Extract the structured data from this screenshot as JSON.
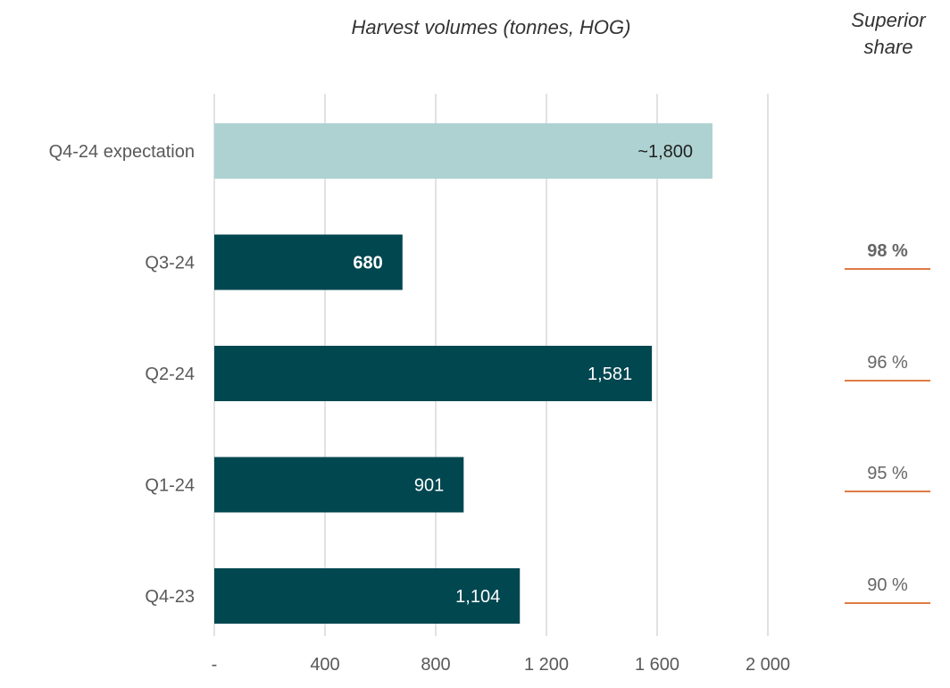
{
  "chart_data": {
    "type": "bar",
    "orientation": "horizontal",
    "title": "Harvest volumes (tonnes, HOG)",
    "categories": [
      "Q4-24 expectation",
      "Q3-24",
      "Q2-24",
      "Q1-24",
      "Q4-23"
    ],
    "values": [
      1800,
      680,
      1581,
      901,
      1104
    ],
    "data_labels": [
      "~1,800",
      "680",
      "1,581",
      "901",
      "1,104"
    ],
    "highlight_bold": [
      false,
      true,
      false,
      false,
      false
    ],
    "bar_colors": [
      "#aed2d2",
      "#004750",
      "#004750",
      "#004750",
      "#004750"
    ],
    "xlim": [
      0,
      2000
    ],
    "xticks": [
      0,
      400,
      800,
      1200,
      1600,
      2000
    ],
    "xtick_labels": [
      "-",
      "400",
      "800",
      "1 200",
      "1 600",
      "2 000"
    ],
    "grid": "vertical"
  },
  "superior_share": {
    "title_line1": "Superior",
    "title_line2": "share",
    "values": [
      "",
      "98 %",
      "96 %",
      "95 %",
      "90 %"
    ],
    "bold": [
      false,
      true,
      false,
      false,
      false
    ],
    "underline_color": "#e07a45"
  }
}
